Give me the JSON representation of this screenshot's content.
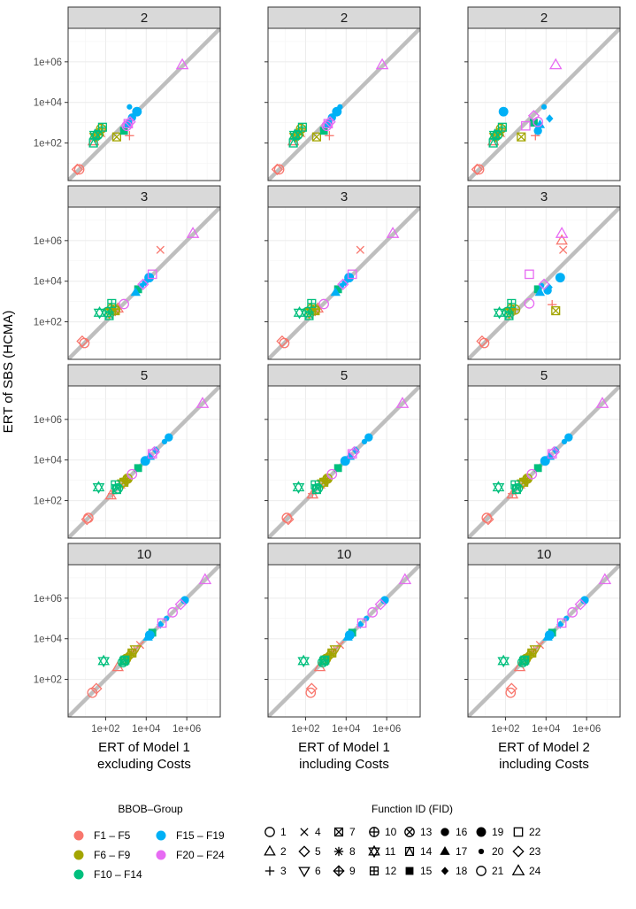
{
  "chart_data": {
    "type": "scatter",
    "log_axes": true,
    "x_tick_labels": [
      "1e+02",
      "1e+04",
      "1e+06"
    ],
    "y_tick_labels": [
      "1e+02",
      "1e+04",
      "1e+06"
    ],
    "x_ticks": [
      100,
      10000,
      1000000
    ],
    "y_ticks": [
      100,
      10000,
      1000000
    ],
    "xlim_log10": [
      0.15,
      7.65
    ],
    "ylim_log10": [
      0.15,
      7.65
    ],
    "y_axis_title": "ERT of SBS (HCMA)",
    "columns": [
      {
        "title_line1": "ERT of Model 1",
        "title_line2": "excluding Costs"
      },
      {
        "title_line1": "ERT of Model 1",
        "title_line2": "including Costs"
      },
      {
        "title_line1": "ERT of Model 2",
        "title_line2": "including Costs"
      }
    ],
    "rows": [
      {
        "strip": "2",
        "points": [
          {
            "fid": 1,
            "x": 5,
            "y": 5
          },
          {
            "fid": 5,
            "x": 4,
            "y": 5
          },
          {
            "fid": 2,
            "x": 25,
            "y": 120
          },
          {
            "fid": 3,
            "x": 1500,
            "y": 230
          },
          {
            "fid": 4,
            "x": 60,
            "y": 300
          },
          {
            "fid": 6,
            "x": 30,
            "y": 200
          },
          {
            "fid": 7,
            "x": 350,
            "y": 200
          },
          {
            "fid": 8,
            "x": 50,
            "y": 330
          },
          {
            "fid": 9,
            "x": 45,
            "y": 250
          },
          {
            "fid": 10,
            "x": 60,
            "y": 500
          },
          {
            "fid": 11,
            "x": 30,
            "y": 250
          },
          {
            "fid": 12,
            "x": 70,
            "y": 600
          },
          {
            "fid": 13,
            "x": 40,
            "y": 250
          },
          {
            "fid": 14,
            "x": 25,
            "y": 100
          },
          {
            "fid": 15,
            "x": 800,
            "y": 400
          },
          {
            "fid": 16,
            "x": 2000,
            "y": 1800
          },
          {
            "fid": 17,
            "x": 1200,
            "y": 800
          },
          {
            "fid": 18,
            "x": 1400,
            "y": 1000
          },
          {
            "fid": 19,
            "x": 3500,
            "y": 3500
          },
          {
            "fid": 20,
            "x": 1500,
            "y": 6000
          },
          {
            "fid": 21,
            "x": 1100,
            "y": 700
          },
          {
            "fid": 22,
            "x": 1300,
            "y": 900
          },
          {
            "fid": 23,
            "x": 1600,
            "y": 1100
          },
          {
            "fid": 24,
            "x": 600000,
            "y": 700000
          }
        ]
      },
      {
        "strip": "3",
        "points": [
          {
            "fid": 1,
            "x": 9,
            "y": 9
          },
          {
            "fid": 5,
            "x": 7,
            "y": 11
          },
          {
            "fid": 2,
            "x": 400,
            "y": 450
          },
          {
            "fid": 3,
            "x": 300,
            "y": 320
          },
          {
            "fid": 4,
            "x": 50000,
            "y": 350000
          },
          {
            "fid": 6,
            "x": 150,
            "y": 280
          },
          {
            "fid": 7,
            "x": 300,
            "y": 350
          },
          {
            "fid": 8,
            "x": 180,
            "y": 300
          },
          {
            "fid": 9,
            "x": 180,
            "y": 450
          },
          {
            "fid": 10,
            "x": 300,
            "y": 400
          },
          {
            "fid": 11,
            "x": 50,
            "y": 280
          },
          {
            "fid": 12,
            "x": 200,
            "y": 800
          },
          {
            "fid": 13,
            "x": 120,
            "y": 300
          },
          {
            "fid": 14,
            "x": 150,
            "y": 200
          },
          {
            "fid": 15,
            "x": 4000,
            "y": 4000
          },
          {
            "fid": 16,
            "x": 15000,
            "y": 15000
          },
          {
            "fid": 17,
            "x": 3000,
            "y": 2800
          },
          {
            "fid": 18,
            "x": 9000,
            "y": 9000
          },
          {
            "fid": 19,
            "x": 14000,
            "y": 15000
          },
          {
            "fid": 20,
            "x": 6000,
            "y": 6000
          },
          {
            "fid": 21,
            "x": 800,
            "y": 750
          },
          {
            "fid": 22,
            "x": 20000,
            "y": 22000
          },
          {
            "fid": 23,
            "x": 7000,
            "y": 7000
          },
          {
            "fid": 24,
            "x": 2000000,
            "y": 2200000
          }
        ]
      },
      {
        "strip": "5",
        "points": [
          {
            "fid": 1,
            "x": 14,
            "y": 14
          },
          {
            "fid": 5,
            "x": 12,
            "y": 12
          },
          {
            "fid": 2,
            "x": 180,
            "y": 180
          },
          {
            "fid": 3,
            "x": 220,
            "y": 220
          },
          {
            "fid": 4,
            "x": 600,
            "y": 600
          },
          {
            "fid": 6,
            "x": 700,
            "y": 700
          },
          {
            "fid": 7,
            "x": 800,
            "y": 800
          },
          {
            "fid": 8,
            "x": 900,
            "y": 900
          },
          {
            "fid": 9,
            "x": 1000,
            "y": 1000
          },
          {
            "fid": 10,
            "x": 1200,
            "y": 1200
          },
          {
            "fid": 11,
            "x": 45,
            "y": 450
          },
          {
            "fid": 12,
            "x": 300,
            "y": 600
          },
          {
            "fid": 13,
            "x": 400,
            "y": 400
          },
          {
            "fid": 14,
            "x": 350,
            "y": 350
          },
          {
            "fid": 15,
            "x": 4000,
            "y": 4000
          },
          {
            "fid": 16,
            "x": 130000,
            "y": 130000
          },
          {
            "fid": 17,
            "x": 15000,
            "y": 15000
          },
          {
            "fid": 18,
            "x": 30000,
            "y": 30000
          },
          {
            "fid": 19,
            "x": 9000,
            "y": 9000
          },
          {
            "fid": 20,
            "x": 80000,
            "y": 80000
          },
          {
            "fid": 21,
            "x": 2000,
            "y": 2000
          },
          {
            "fid": 22,
            "x": 20000,
            "y": 20000
          },
          {
            "fid": 23,
            "x": 25000,
            "y": 25000
          },
          {
            "fid": 24,
            "x": 6000000,
            "y": 6000000
          }
        ]
      },
      {
        "strip": "10",
        "points": [
          {
            "fid": 1,
            "x": 22,
            "y": 22
          },
          {
            "fid": 5,
            "x": 35,
            "y": 35
          },
          {
            "fid": 2,
            "x": 400,
            "y": 400
          },
          {
            "fid": 3,
            "x": 2500,
            "y": 2500
          },
          {
            "fid": 4,
            "x": 5000,
            "y": 5000
          },
          {
            "fid": 6,
            "x": 3000,
            "y": 3000
          },
          {
            "fid": 7,
            "x": 2000,
            "y": 2000
          },
          {
            "fid": 8,
            "x": 1800,
            "y": 1800
          },
          {
            "fid": 9,
            "x": 1500,
            "y": 1500
          },
          {
            "fid": 10,
            "x": 1000,
            "y": 1000
          },
          {
            "fid": 11,
            "x": 80,
            "y": 800
          },
          {
            "fid": 12,
            "x": 900,
            "y": 900
          },
          {
            "fid": 13,
            "x": 700,
            "y": 700
          },
          {
            "fid": 14,
            "x": 800,
            "y": 800
          },
          {
            "fid": 15,
            "x": 20000,
            "y": 20000
          },
          {
            "fid": 16,
            "x": 800000,
            "y": 800000
          },
          {
            "fid": 17,
            "x": 12000,
            "y": 12000
          },
          {
            "fid": 18,
            "x": 50000,
            "y": 50000
          },
          {
            "fid": 19,
            "x": 15000,
            "y": 15000
          },
          {
            "fid": 20,
            "x": 100000,
            "y": 100000
          },
          {
            "fid": 21,
            "x": 200000,
            "y": 200000
          },
          {
            "fid": 22,
            "x": 60000,
            "y": 60000
          },
          {
            "fid": 23,
            "x": 500000,
            "y": 500000
          },
          {
            "fid": 24,
            "x": 8000000,
            "y": 8000000
          }
        ]
      }
    ],
    "column_overrides": {
      "1": {
        "0": [
          {
            "fid": 20,
            "x": 5000,
            "y": 6000
          }
        ],
        "2": [
          {
            "fid": 1,
            "x": 12,
            "y": 14
          },
          {
            "fid": 5,
            "x": 14,
            "y": 12
          },
          {
            "fid": 2,
            "x": 220,
            "y": 200
          }
        ],
        "3": [
          {
            "fid": 1,
            "x": 180,
            "y": 22
          },
          {
            "fid": 5,
            "x": 200,
            "y": 35
          },
          {
            "fid": 2,
            "x": 500,
            "y": 400
          }
        ]
      },
      "2": {
        "0": [
          {
            "fid": 19,
            "x": 80,
            "y": 3500
          },
          {
            "fid": 18,
            "x": 15000,
            "y": 1600
          },
          {
            "fid": 17,
            "x": 5000,
            "y": 800
          },
          {
            "fid": 15,
            "x": 2500,
            "y": 1000
          },
          {
            "fid": 20,
            "x": 8000,
            "y": 6000
          },
          {
            "fid": 24,
            "x": 30000,
            "y": 700000
          },
          {
            "fid": 3,
            "x": 3000,
            "y": 230
          },
          {
            "fid": 7,
            "x": 600,
            "y": 200
          },
          {
            "fid": 22,
            "x": 1000,
            "y": 700
          },
          {
            "fid": 23,
            "x": 2500,
            "y": 2200
          },
          {
            "fid": 16,
            "x": 4000,
            "y": 400
          },
          {
            "fid": 21,
            "x": 4000,
            "y": 1100
          }
        ],
        "1": [
          {
            "fid": 24,
            "x": 60000,
            "y": 2200000
          },
          {
            "fid": 2,
            "x": 60000,
            "y": 1000000
          },
          {
            "fid": 4,
            "x": 70000,
            "y": 350000
          },
          {
            "fid": 22,
            "x": 1500,
            "y": 22000
          },
          {
            "fid": 23,
            "x": 8000,
            "y": 7000
          },
          {
            "fid": 19,
            "x": 50000,
            "y": 15000
          },
          {
            "fid": 16,
            "x": 12000,
            "y": 3500
          },
          {
            "fid": 17,
            "x": 5000,
            "y": 2800
          },
          {
            "fid": 18,
            "x": 14000,
            "y": 5000
          },
          {
            "fid": 3,
            "x": 20000,
            "y": 700
          },
          {
            "fid": 7,
            "x": 30000,
            "y": 350
          },
          {
            "fid": 21,
            "x": 1500,
            "y": 800
          }
        ],
        "2": [
          {
            "fid": 1,
            "x": 12,
            "y": 14
          },
          {
            "fid": 5,
            "x": 14,
            "y": 12
          },
          {
            "fid": 2,
            "x": 220,
            "y": 200
          }
        ],
        "3": [
          {
            "fid": 1,
            "x": 180,
            "y": 22
          },
          {
            "fid": 5,
            "x": 200,
            "y": 35
          },
          {
            "fid": 2,
            "x": 500,
            "y": 400
          }
        ]
      }
    },
    "bbob_groups": [
      {
        "label": "F1 – F5",
        "color": "#F8766D"
      },
      {
        "label": "F6 – F9",
        "color": "#A3A500"
      },
      {
        "label": "F10 – F14",
        "color": "#00BF7D"
      },
      {
        "label": "F15 – F19",
        "color": "#00B0F6"
      },
      {
        "label": "F20 – F24",
        "color": "#E76BF3"
      }
    ],
    "legend": {
      "group_title": "BBOB–Group",
      "fid_title": "Function ID (FID)",
      "fid_labels": [
        "1",
        "2",
        "3",
        "4",
        "5",
        "6",
        "7",
        "8",
        "9",
        "10",
        "11",
        "12",
        "13",
        "14",
        "15",
        "16",
        "17",
        "18",
        "19",
        "20",
        "21",
        "22",
        "23",
        "24"
      ]
    },
    "diagonal_color": "#bebebe",
    "panel_background": "#ffffff",
    "strip_background": "#d9d9d9"
  }
}
